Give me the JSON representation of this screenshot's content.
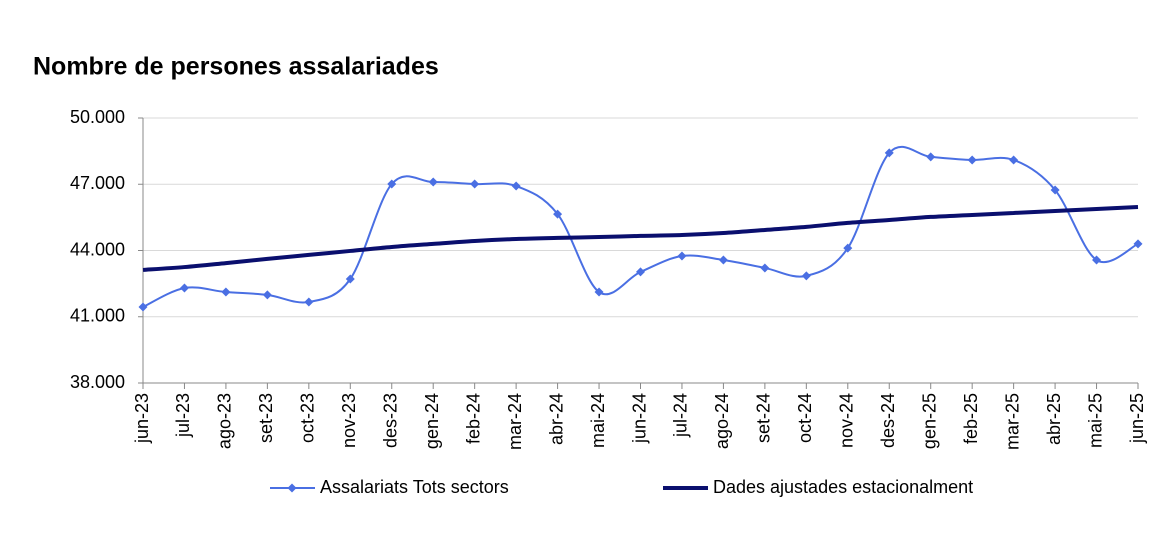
{
  "chart_data": {
    "type": "line",
    "title": "Nombre de persones assalariades",
    "categories": [
      "jun-23",
      "jul-23",
      "ago-23",
      "set-23",
      "oct-23",
      "nov-23",
      "des-23",
      "gen-24",
      "feb-24",
      "mar-24",
      "abr-24",
      "mai-24",
      "jun-24",
      "jul-24",
      "ago-24",
      "set-24",
      "oct-24",
      "nov-24",
      "des-24",
      "gen-25",
      "feb-25",
      "mar-25",
      "abr-25",
      "mai-25",
      "jun-25"
    ],
    "series": [
      {
        "name": "Assalariats Tots sectors",
        "color": "#4a6fe3",
        "marker": "diamond",
        "values": [
          41440,
          42300,
          42120,
          41990,
          41670,
          42710,
          47010,
          47100,
          47010,
          46920,
          45650,
          42120,
          43030,
          43750,
          43570,
          43210,
          42850,
          44110,
          48420,
          48240,
          48100,
          48100,
          46740,
          43570,
          44300
        ]
      },
      {
        "name": "Dades ajustades estacionalment",
        "color": "#0a0f6e",
        "values": [
          43120,
          43250,
          43430,
          43620,
          43800,
          43980,
          44160,
          44300,
          44430,
          44520,
          44570,
          44610,
          44660,
          44700,
          44790,
          44930,
          45070,
          45250,
          45380,
          45520,
          45610,
          45700,
          45790,
          45880,
          45970
        ]
      }
    ],
    "ylim": [
      38000,
      50000
    ],
    "yticks": [
      {
        "value": 38000,
        "label": "38.000"
      },
      {
        "value": 41000,
        "label": "41.000"
      },
      {
        "value": 44000,
        "label": "44.000"
      },
      {
        "value": 47000,
        "label": "47.000"
      },
      {
        "value": 50000,
        "label": "50.000"
      }
    ],
    "grid": true,
    "legend": "bottom"
  }
}
